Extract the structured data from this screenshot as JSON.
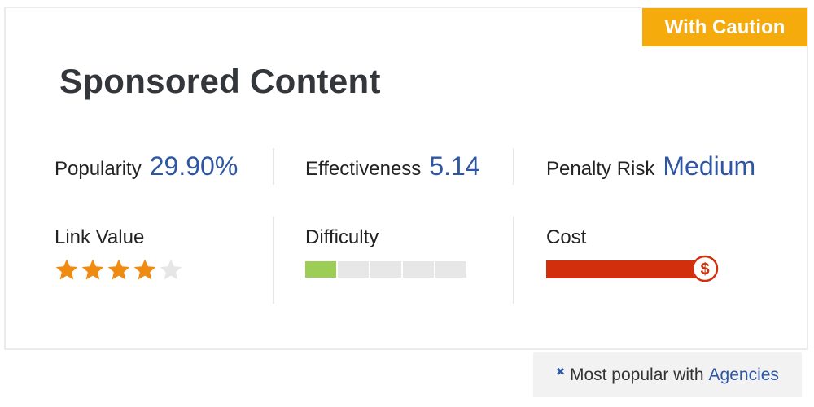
{
  "badge": "With Caution",
  "title": "Sponsored Content",
  "metrics": {
    "popularity": {
      "label": "Popularity",
      "value": "29.90%"
    },
    "effectiveness": {
      "label": "Effectiveness",
      "value": "5.14"
    },
    "penalty_risk": {
      "label": "Penalty Risk",
      "value": "Medium"
    }
  },
  "link_value": {
    "label": "Link Value",
    "rating": 4,
    "max": 5
  },
  "difficulty": {
    "label": "Difficulty",
    "level": 1,
    "segments": 5
  },
  "cost": {
    "label": "Cost",
    "fraction": 1.0,
    "icon": "dollar-icon"
  },
  "footer": {
    "prefix": "Most popular with",
    "link": "Agencies",
    "icon": "close-icon"
  },
  "colors": {
    "accent": "#2e56a3",
    "badge": "#f5ab0c",
    "star_on": "#f08a11",
    "star_off": "#e6e6e6",
    "difficulty_fill": "#9ccd55",
    "cost_fill": "#d2300c"
  }
}
